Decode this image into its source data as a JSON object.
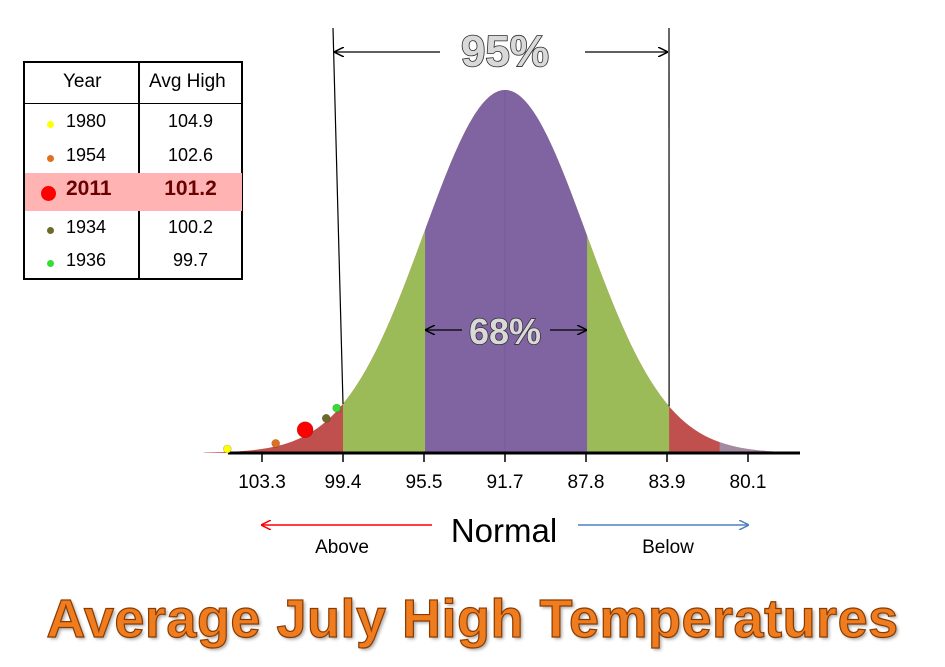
{
  "title": "Average July High Temperatures",
  "legend": {
    "headers": {
      "year": "Year",
      "value": "Avg High"
    },
    "rows": [
      {
        "year": "1980",
        "value": "104.9",
        "color": "#ffff00",
        "highlight": false
      },
      {
        "year": "1954",
        "value": "102.6",
        "color": "#e07020",
        "highlight": false
      },
      {
        "year": "2011",
        "value": "101.2",
        "color": "#ff0000",
        "highlight": true
      },
      {
        "year": "1934",
        "value": "100.2",
        "color": "#6b6b2a",
        "highlight": false
      },
      {
        "year": "1936",
        "value": "99.7",
        "color": "#33dd33",
        "highlight": false
      }
    ],
    "highlight_color": "#ffb3b3"
  },
  "chart_data": {
    "type": "area",
    "description_type": "normal-distribution",
    "mean": 91.7,
    "sd": 3.85,
    "x_ticks": [
      "103.3",
      "99.4",
      "95.5",
      "91.7",
      "87.8",
      "83.9",
      "80.1"
    ],
    "x_reversed": true,
    "bands": [
      {
        "label": "68%",
        "from": 87.8,
        "to": 95.5,
        "color": "#8064a2"
      },
      {
        "label": "95%",
        "from": 83.9,
        "to": 99.4,
        "color": "#9bbb59"
      },
      {
        "label": "",
        "from": 78,
        "to": 106,
        "color": "#c0504d"
      }
    ],
    "points": [
      {
        "year": "1980",
        "value": 104.9,
        "color": "#ffff00"
      },
      {
        "year": "1954",
        "value": 102.6,
        "color": "#e07020"
      },
      {
        "year": "2011",
        "value": 101.2,
        "color": "#ff0000"
      },
      {
        "year": "1934",
        "value": 100.2,
        "color": "#6b6b2a"
      },
      {
        "year": "1936",
        "value": 99.7,
        "color": "#33dd33"
      }
    ],
    "annotations": {
      "pct95": "95%",
      "pct68": "68%"
    },
    "direction": {
      "center": "Normal",
      "left": "Above",
      "right": "Below",
      "left_color": "#ff0000",
      "right_color": "#4f81bd"
    }
  }
}
